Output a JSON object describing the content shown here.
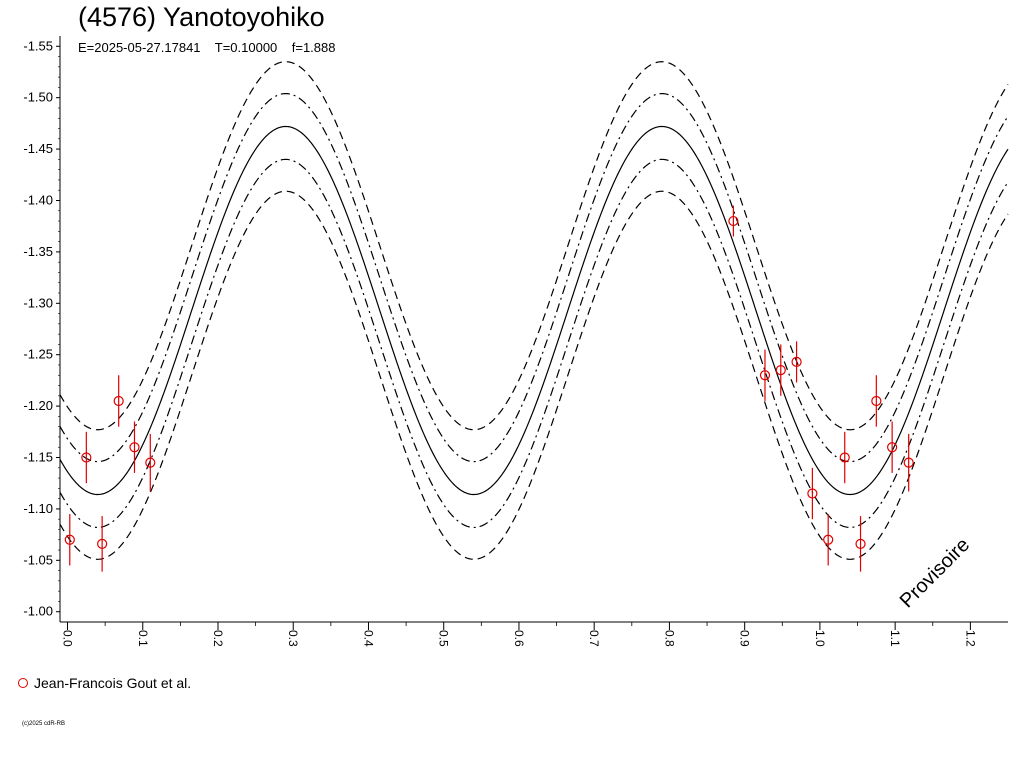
{
  "title": "(4576) Yanotoyohiko",
  "subtitle": {
    "epoch": "E=2025-05-27.17841",
    "period": "T=0.10000",
    "frequency": "f=1.888"
  },
  "watermark": "Provisoire",
  "copyright": "(c)2025 cdR-RB",
  "legend": [
    {
      "label": "Jean-Francois Gout et al.",
      "color": "#e00000",
      "marker": "open-circle"
    }
  ],
  "chart_data": {
    "type": "scatter",
    "title": "(4576) Yanotoyohiko",
    "xlabel": "",
    "ylabel": "",
    "xlim": [
      -0.01,
      1.25
    ],
    "ylim": [
      -1.56,
      -0.99
    ],
    "y_inverted": true,
    "grid": false,
    "x_ticks": [
      0.0,
      0.1,
      0.2,
      0.3,
      0.4,
      0.5,
      0.6,
      0.7,
      0.8,
      0.9,
      1.0,
      1.1,
      1.2
    ],
    "x_tick_labels": [
      "0.0",
      "0.1",
      "0.2",
      "0.3",
      "0.4",
      "0.5",
      "0.6",
      "0.7",
      "0.8",
      "0.9",
      "1.0",
      "1.1",
      "1.2"
    ],
    "y_ticks": [
      -1.55,
      -1.5,
      -1.45,
      -1.4,
      -1.35,
      -1.3,
      -1.25,
      -1.2,
      -1.15,
      -1.1,
      -1.05,
      -1.0
    ],
    "y_tick_labels": [
      "-1.55",
      "-1.50",
      "-1.45",
      "-1.40",
      "-1.35",
      "-1.30",
      "-1.25",
      "-1.20",
      "-1.15",
      "-1.10",
      "-1.05",
      "-1.00"
    ],
    "model": {
      "mean": -1.293,
      "amplitude": 0.179,
      "phase_max": 0.29,
      "bands": [
        {
          "offset": 0.0,
          "style": "solid"
        },
        {
          "offset": 0.032,
          "style": "dashdot"
        },
        {
          "offset": -0.032,
          "style": "dashdot"
        },
        {
          "offset": 0.063,
          "style": "dashed"
        },
        {
          "offset": -0.063,
          "style": "dashed"
        }
      ]
    },
    "series": [
      {
        "name": "Jean-Francois Gout et al.",
        "color": "#e00000",
        "points": [
          {
            "x": 0.003,
            "y": -1.07,
            "err": 0.025
          },
          {
            "x": 0.025,
            "y": -1.15,
            "err": 0.025
          },
          {
            "x": 0.046,
            "y": -1.066,
            "err": 0.027
          },
          {
            "x": 0.068,
            "y": -1.205,
            "err": 0.025
          },
          {
            "x": 0.089,
            "y": -1.16,
            "err": 0.025
          },
          {
            "x": 0.11,
            "y": -1.145,
            "err": 0.028
          },
          {
            "x": 0.885,
            "y": -1.38,
            "err": 0.015
          },
          {
            "x": 0.927,
            "y": -1.23,
            "err": 0.025
          },
          {
            "x": 0.948,
            "y": -1.235,
            "err": 0.025
          },
          {
            "x": 0.969,
            "y": -1.243,
            "err": 0.02
          },
          {
            "x": 0.99,
            "y": -1.115,
            "err": 0.025
          },
          {
            "x": 1.011,
            "y": -1.07,
            "err": 0.025
          },
          {
            "x": 1.033,
            "y": -1.15,
            "err": 0.025
          },
          {
            "x": 1.054,
            "y": -1.066,
            "err": 0.027
          },
          {
            "x": 1.075,
            "y": -1.205,
            "err": 0.025
          },
          {
            "x": 1.096,
            "y": -1.16,
            "err": 0.025
          },
          {
            "x": 1.118,
            "y": -1.145,
            "err": 0.028
          }
        ]
      }
    ]
  }
}
